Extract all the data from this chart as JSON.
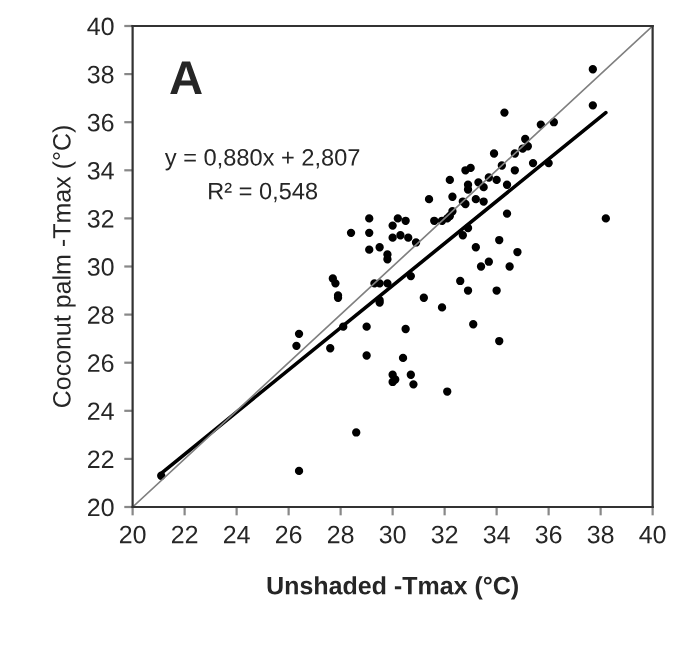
{
  "chart_data": {
    "type": "scatter",
    "xlabel": "Unshaded -Tmax (°C)",
    "ylabel": "Coconut palm -Tmax (°C)",
    "xlim": [
      20,
      40
    ],
    "ylim": [
      20,
      40
    ],
    "xticks": [
      20,
      22,
      24,
      26,
      28,
      30,
      32,
      34,
      36,
      38,
      40
    ],
    "yticks": [
      20,
      22,
      24,
      26,
      28,
      30,
      32,
      34,
      36,
      38,
      40
    ],
    "grid": false,
    "legend": false,
    "marker": "circle",
    "annotations": [
      "A",
      "y = 0,880x + 2,807",
      "R² = 0,548"
    ],
    "series": [
      {
        "color": "#000000",
        "x": [
          37.7,
          37.7,
          34.3,
          35.7,
          36.2,
          35.1,
          35.2,
          35.0,
          35.4,
          36.0,
          34.7,
          33.9,
          34.2,
          34.7,
          32.8,
          33.0,
          33.7,
          34.0,
          34.4,
          32.2,
          33.3,
          33.5,
          32.9,
          32.9,
          32.3,
          33.2,
          32.7,
          33.5,
          31.4,
          32.8,
          32.3,
          32.2,
          32.1,
          31.9,
          31.6,
          34.4,
          38.2,
          30.2,
          30.5,
          30.0,
          30.0,
          30.3,
          30.6,
          30.9,
          32.9,
          32.7,
          29.8,
          29.8,
          33.2,
          34.1,
          34.8,
          33.7,
          33.4,
          34.5,
          29.8,
          30.7,
          32.6,
          32.9,
          34.0,
          31.2,
          31.9,
          29.1,
          29.1,
          28.4,
          29.1,
          29.5,
          27.7,
          27.8,
          27.9,
          29.3,
          29.5,
          29.5,
          21.1,
          26.3,
          26.4,
          27.6,
          28.1,
          27.9,
          29.0,
          29.0,
          28.6,
          26.4,
          30.0,
          30.1,
          29.5,
          30.5,
          33.1,
          34.1,
          30.4,
          30.0,
          30.7,
          30.8,
          32.1
        ],
        "values": [
          38.2,
          36.7,
          36.4,
          35.9,
          36.0,
          35.3,
          35.0,
          34.9,
          34.3,
          34.3,
          34.7,
          34.7,
          34.2,
          34.0,
          34.0,
          34.1,
          33.7,
          33.6,
          33.4,
          33.6,
          33.5,
          33.3,
          33.4,
          33.2,
          32.9,
          32.8,
          32.7,
          32.7,
          32.8,
          32.6,
          32.3,
          32.1,
          32.0,
          31.9,
          31.9,
          32.2,
          32.0,
          32.0,
          31.9,
          31.7,
          31.2,
          31.3,
          31.2,
          31.0,
          31.6,
          31.3,
          30.5,
          30.3,
          30.8,
          31.1,
          30.6,
          30.2,
          30.0,
          30.0,
          29.3,
          29.6,
          29.4,
          29.0,
          29.0,
          28.7,
          28.3,
          32.0,
          31.4,
          31.4,
          30.7,
          30.8,
          29.5,
          29.3,
          28.7,
          29.3,
          29.3,
          28.5,
          21.3,
          26.7,
          27.2,
          26.6,
          27.5,
          28.8,
          27.5,
          26.3,
          23.1,
          21.5,
          25.5,
          25.3,
          28.6,
          27.4,
          27.6,
          26.9,
          26.2,
          25.2,
          25.5,
          25.1,
          24.8
        ]
      },
      {
        "type": "line",
        "color": "#000000",
        "marker": "none",
        "x": [
          21.1,
          38.2
        ],
        "values": [
          21.4,
          36.4
        ]
      },
      {
        "type": "line",
        "color": "#808080",
        "marker": "none",
        "x": [
          20,
          40
        ],
        "values": [
          20,
          40
        ]
      }
    ]
  }
}
